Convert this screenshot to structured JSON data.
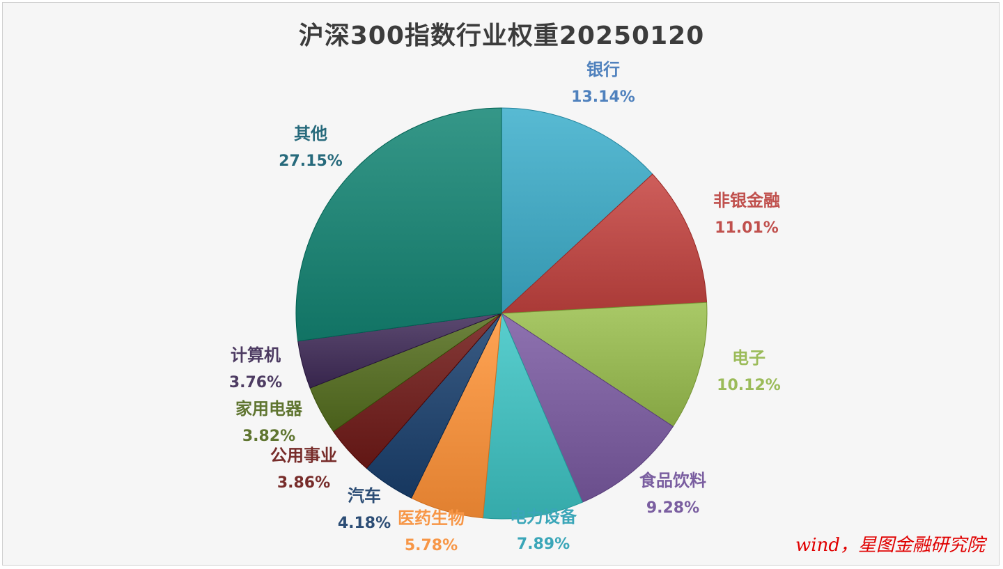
{
  "chart_data": {
    "type": "pie",
    "title": "沪深300指数行业权重20250120",
    "unit": "%",
    "slices": [
      {
        "label": "银行",
        "value": 13.14,
        "pct_text": "13.14%",
        "color": "#4aacc5",
        "label_color": "#4f81bd"
      },
      {
        "label": "非银金融",
        "value": 11.01,
        "pct_text": "11.01%",
        "color": "#c0504d",
        "label_color": "#c0504d"
      },
      {
        "label": "电子",
        "value": 10.12,
        "pct_text": "10.12%",
        "color": "#9bbb59",
        "label_color": "#9bbb59"
      },
      {
        "label": "食品饮料",
        "value": 9.28,
        "pct_text": "9.28%",
        "color": "#8064a2",
        "label_color": "#7a5ea0"
      },
      {
        "label": "电力设备",
        "value": 7.89,
        "pct_text": "7.89%",
        "color": "#4bc0c0",
        "label_color": "#3aa6b8"
      },
      {
        "label": "医药生物",
        "value": 5.78,
        "pct_text": "5.78%",
        "color": "#f79646",
        "label_color": "#f79646"
      },
      {
        "label": "汽车",
        "value": 4.18,
        "pct_text": "4.18%",
        "color": "#2c4d75",
        "label_color": "#2c4d75"
      },
      {
        "label": "公用事业",
        "value": 3.86,
        "pct_text": "3.86%",
        "color": "#772c2a",
        "label_color": "#772c2a"
      },
      {
        "label": "家用电器",
        "value": 3.82,
        "pct_text": "3.82%",
        "color": "#5f7530",
        "label_color": "#5f7530"
      },
      {
        "label": "计算机",
        "value": 3.76,
        "pct_text": "3.76%",
        "color": "#4d3b62",
        "label_color": "#4d3b62"
      },
      {
        "label": "其他",
        "value": 27.15,
        "pct_text": "27.15%",
        "color": "#27897a",
        "label_color": "#276a7c"
      }
    ]
  },
  "source": "wind，星图金融研究院"
}
